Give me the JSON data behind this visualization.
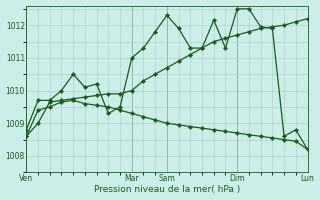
{
  "background_color": "#cceee8",
  "grid_color": "#aacccc",
  "line_color": "#1a5c1a",
  "xlabel": "Pression niveau de la mer( hPa )",
  "ylim": [
    1007.5,
    1012.6
  ],
  "yticks": [
    1008,
    1009,
    1010,
    1011,
    1012
  ],
  "xtick_labels": [
    "Ven",
    "",
    "Mar",
    "Sam",
    "",
    "Dim",
    "",
    "Lun"
  ],
  "xtick_major_positions": [
    0,
    9,
    12,
    18,
    24
  ],
  "xtick_major_labels": [
    "Ven",
    "Mar",
    "Sam",
    "Dim",
    "Lun"
  ],
  "xlim": [
    0,
    24
  ],
  "series1_x": [
    0,
    1,
    2,
    3,
    4,
    5,
    6,
    7,
    8,
    9,
    10,
    11,
    12,
    13,
    14,
    15,
    16,
    17,
    18,
    19,
    20,
    21,
    22,
    23,
    24
  ],
  "series1_y": [
    1008.6,
    1009.0,
    1009.65,
    1009.7,
    1009.75,
    1009.8,
    1009.85,
    1009.9,
    1009.9,
    1010.0,
    1010.3,
    1010.5,
    1010.7,
    1010.9,
    1011.1,
    1011.3,
    1011.5,
    1011.6,
    1011.7,
    1011.8,
    1011.9,
    1011.95,
    1012.0,
    1012.1,
    1012.2
  ],
  "series2_x": [
    0,
    1,
    2,
    3,
    4,
    5,
    6,
    7,
    8,
    9,
    10,
    11,
    12,
    13,
    14,
    15,
    16,
    17,
    18,
    19,
    20,
    21,
    22,
    23,
    24
  ],
  "series2_y": [
    1008.8,
    1009.7,
    1009.7,
    1010.0,
    1010.5,
    1010.1,
    1010.2,
    1009.3,
    1009.5,
    1011.0,
    1011.3,
    1011.8,
    1012.3,
    1011.9,
    1011.3,
    1011.3,
    1012.15,
    1011.3,
    1012.5,
    1012.5,
    1011.95,
    1011.9,
    1008.6,
    1008.8,
    1008.2
  ],
  "series3_x": [
    0,
    1,
    2,
    3,
    4,
    5,
    6,
    7,
    8,
    9,
    10,
    11,
    12,
    13,
    14,
    15,
    16,
    17,
    18,
    19,
    20,
    21,
    22,
    23,
    24
  ],
  "series3_y": [
    1008.6,
    1009.4,
    1009.5,
    1009.65,
    1009.7,
    1009.6,
    1009.55,
    1009.5,
    1009.4,
    1009.3,
    1009.2,
    1009.1,
    1009.0,
    1008.95,
    1008.9,
    1008.85,
    1008.8,
    1008.75,
    1008.7,
    1008.65,
    1008.6,
    1008.55,
    1008.5,
    1008.45,
    1008.2
  ]
}
